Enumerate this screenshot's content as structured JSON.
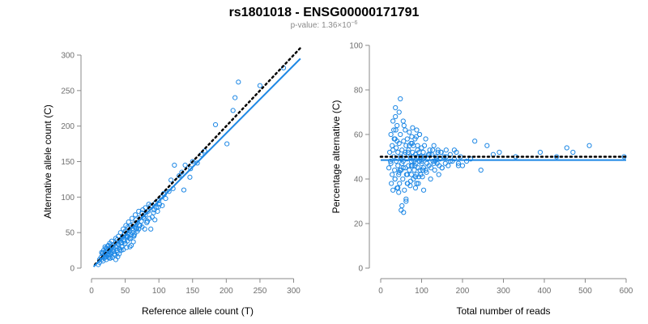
{
  "title": "rs1801018 - ENSG00000171791",
  "subtitle": {
    "prefix": "p-value: 1.36×10",
    "exponent": "−6"
  },
  "colors": {
    "point": "#1e88e5",
    "fit": "#1e88e5",
    "reference": "#000000",
    "axis": "#8a8a8a"
  },
  "chart_data": [
    {
      "type": "scatter",
      "xlabel": "Reference allele count (T)",
      "ylabel": "Alternative allele count (C)",
      "xlim": [
        0,
        315
      ],
      "ylim": [
        0,
        300
      ],
      "xticks": [
        0,
        50,
        100,
        150,
        200,
        250,
        300
      ],
      "yticks": [
        0,
        50,
        100,
        150,
        200,
        250,
        300
      ],
      "reference_line": {
        "x": [
          5,
          310
        ],
        "y": [
          5,
          310
        ]
      },
      "fit_line": {
        "x": [
          3,
          310
        ],
        "y": [
          2,
          295
        ]
      },
      "points": {
        "x": [
          10,
          12,
          14,
          15,
          16,
          17,
          18,
          18,
          19,
          20,
          20,
          21,
          22,
          22,
          23,
          23,
          24,
          25,
          25,
          26,
          27,
          27,
          28,
          29,
          30,
          30,
          31,
          32,
          33,
          34,
          35,
          36,
          37,
          38,
          38,
          40,
          40,
          41,
          42,
          43,
          44,
          45,
          46,
          47,
          48,
          49,
          50,
          50,
          51,
          52,
          53,
          54,
          55,
          55,
          56,
          57,
          58,
          59,
          60,
          60,
          61,
          62,
          63,
          64,
          65,
          66,
          67,
          68,
          70,
          72,
          72,
          74,
          75,
          76,
          78,
          80,
          80,
          82,
          84,
          85,
          86,
          88,
          90,
          92,
          95,
          96,
          98,
          100,
          101,
          104,
          107,
          110,
          115,
          123,
          130,
          134,
          139,
          150,
          168,
          184,
          210,
          213,
          218,
          250,
          285,
          15,
          19,
          24,
          28,
          33,
          36,
          41,
          45,
          52,
          58,
          64,
          70,
          26,
          31,
          38,
          43,
          47,
          54,
          62,
          68,
          75,
          83,
          88,
          93,
          35,
          42,
          57,
          63,
          79,
          105,
          121,
          146,
          157,
          12,
          17,
          21,
          27,
          29,
          34,
          39,
          44,
          49,
          53,
          59,
          66,
          71,
          77,
          94,
          99,
          108,
          118,
          137,
          147,
          163,
          201
        ],
        "y": [
          5,
          8,
          15,
          12,
          20,
          10,
          25,
          18,
          14,
          22,
          30,
          16,
          12,
          24,
          19,
          28,
          20,
          15,
          32,
          23,
          18,
          35,
          26,
          22,
          30,
          38,
          25,
          33,
          28,
          20,
          35,
          42,
          30,
          25,
          40,
          45,
          33,
          28,
          38,
          50,
          36,
          30,
          44,
          55,
          40,
          48,
          35,
          52,
          60,
          45,
          38,
          58,
          48,
          65,
          42,
          52,
          60,
          47,
          55,
          70,
          50,
          62,
          45,
          58,
          75,
          68,
          55,
          64,
          80,
          72,
          60,
          66,
          78,
          82,
          70,
          85,
          75,
          64,
          80,
          90,
          70,
          88,
          72,
          78,
          92,
          85,
          80,
          95,
          90,
          100,
          105,
          98,
          108,
          145,
          130,
          135,
          145,
          150,
          165,
          202,
          222,
          240,
          262,
          257,
          282,
          22,
          17,
          31,
          14,
          24,
          12,
          20,
          36,
          29,
          42,
          48,
          55,
          20,
          15,
          22,
          35,
          26,
          44,
          37,
          52,
          58,
          66,
          55,
          82,
          18,
          26,
          30,
          46,
          55,
          88,
          112,
          128,
          148,
          12,
          22,
          28,
          14,
          30,
          20,
          16,
          25,
          38,
          45,
          32,
          56,
          60,
          72,
          68,
          86,
          104,
          124,
          110,
          140,
          160,
          175
        ]
      }
    },
    {
      "type": "scatter",
      "xlabel": "Total number of reads",
      "ylabel": "Percentage alternative (C)",
      "xlim": [
        0,
        600
      ],
      "ylim": [
        0,
        100
      ],
      "xticks": [
        0,
        100,
        200,
        300,
        400,
        500,
        600
      ],
      "yticks": [
        0,
        20,
        40,
        60,
        80,
        100
      ],
      "reference_line": {
        "x": [
          0,
          600
        ],
        "y": [
          50,
          50
        ]
      },
      "fit_line": {
        "x": [
          0,
          600
        ],
        "y": [
          48.5,
          48.5
        ]
      },
      "points": {
        "x": [
          20,
          22,
          24,
          25,
          26,
          28,
          28,
          30,
          30,
          32,
          32,
          34,
          35,
          35,
          36,
          38,
          38,
          40,
          40,
          42,
          42,
          44,
          45,
          45,
          46,
          48,
          48,
          50,
          50,
          52,
          52,
          54,
          55,
          55,
          56,
          58,
          58,
          60,
          60,
          62,
          62,
          64,
          65,
          65,
          66,
          68,
          68,
          70,
          70,
          72,
          72,
          74,
          75,
          75,
          76,
          78,
          78,
          80,
          80,
          82,
          82,
          84,
          85,
          85,
          86,
          88,
          88,
          90,
          90,
          92,
          92,
          94,
          95,
          95,
          96,
          98,
          98,
          100,
          100,
          102,
          104,
          105,
          108,
          110,
          112,
          115,
          118,
          120,
          122,
          125,
          128,
          130,
          132,
          135,
          138,
          140,
          142,
          145,
          148,
          150,
          155,
          158,
          160,
          165,
          170,
          175,
          180,
          185,
          190,
          195,
          200,
          210,
          220,
          230,
          245,
          260,
          275,
          290,
          330,
          390,
          430,
          455,
          470,
          510,
          595,
          25,
          30,
          35,
          40,
          45,
          50,
          55,
          60,
          65,
          70,
          75,
          80,
          85,
          90,
          100,
          110,
          120,
          130,
          140,
          150,
          160,
          170,
          180,
          190,
          33,
          37,
          42,
          47,
          52,
          57,
          63,
          67,
          73,
          77,
          83,
          87,
          93,
          97,
          103,
          107,
          113,
          117,
          123,
          127,
          133,
          137,
          143,
          147,
          36,
          44,
          48,
          56,
          62,
          78,
          88,
          95,
          105
        ],
        "y": [
          45,
          52,
          48,
          60,
          38,
          55,
          42,
          66,
          35,
          50,
          62,
          44,
          58,
          40,
          68,
          48,
          54,
          36,
          64,
          46,
          52,
          42,
          70,
          56,
          38,
          50,
          60,
          44,
          26,
          53,
          47,
          40,
          66,
          48,
          57,
          35,
          51,
          62,
          45,
          30,
          55,
          49,
          42,
          58,
          38,
          53,
          46,
          61,
          44,
          50,
          37,
          56,
          48,
          42,
          59,
          46,
          52,
          40,
          55,
          48,
          44,
          58,
          36,
          51,
          47,
          62,
          42,
          50,
          55,
          45,
          38,
          52,
          48,
          60,
          44,
          50,
          42,
          47,
          54,
          41,
          52,
          45,
          50,
          58,
          43,
          49,
          46,
          53,
          40,
          51,
          48,
          55,
          44,
          50,
          47,
          53,
          42,
          49,
          52,
          45,
          50,
          47,
          53,
          46,
          51,
          48,
          49,
          52,
          47,
          50,
          46,
          48,
          49,
          57,
          44,
          55,
          51,
          52,
          50,
          52,
          50,
          54,
          52,
          55,
          50,
          47,
          53,
          40,
          57,
          43,
          49,
          45,
          52,
          38,
          55,
          46,
          50,
          41,
          53,
          48,
          44,
          51,
          47,
          52,
          45,
          50,
          48,
          53,
          46,
          58,
          62,
          36,
          44,
          28,
          64,
          42,
          52,
          39,
          56,
          46,
          59,
          41,
          50,
          44,
          55,
          47,
          51,
          45,
          53,
          48,
          49,
          46,
          52,
          72,
          34,
          76,
          25,
          31,
          63,
          38,
          60,
          35
        ]
      }
    }
  ]
}
